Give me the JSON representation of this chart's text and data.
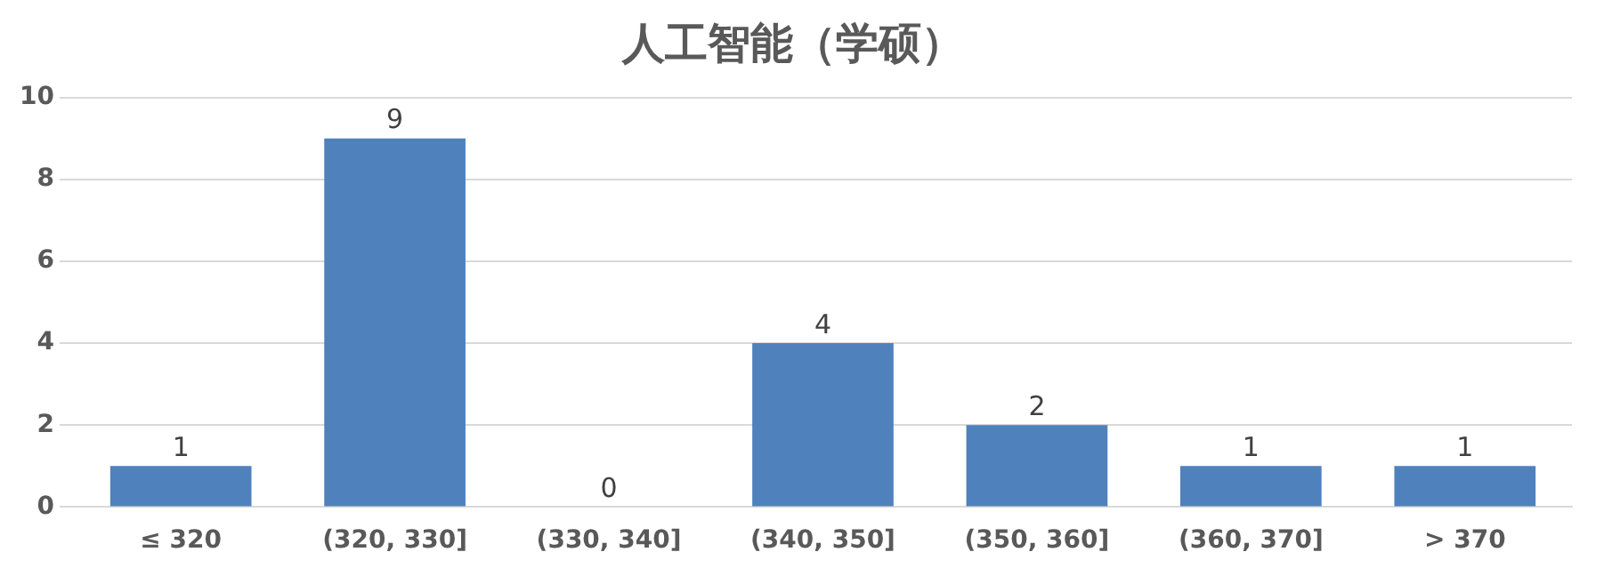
{
  "chart_data": {
    "type": "bar",
    "title": "人工智能（学硕）",
    "categories": [
      "≤ 320",
      "(320, 330]",
      "(330, 340]",
      "(340, 350]",
      "(350, 360]",
      "(360, 370]",
      "> 370"
    ],
    "values": [
      1,
      9,
      0,
      4,
      2,
      1,
      1
    ],
    "color": "#4f81bd",
    "ylim": [
      0,
      10
    ],
    "yticks": [
      0,
      2,
      4,
      6,
      8,
      10
    ],
    "grid": "y",
    "data_labels": true,
    "legend": false
  }
}
